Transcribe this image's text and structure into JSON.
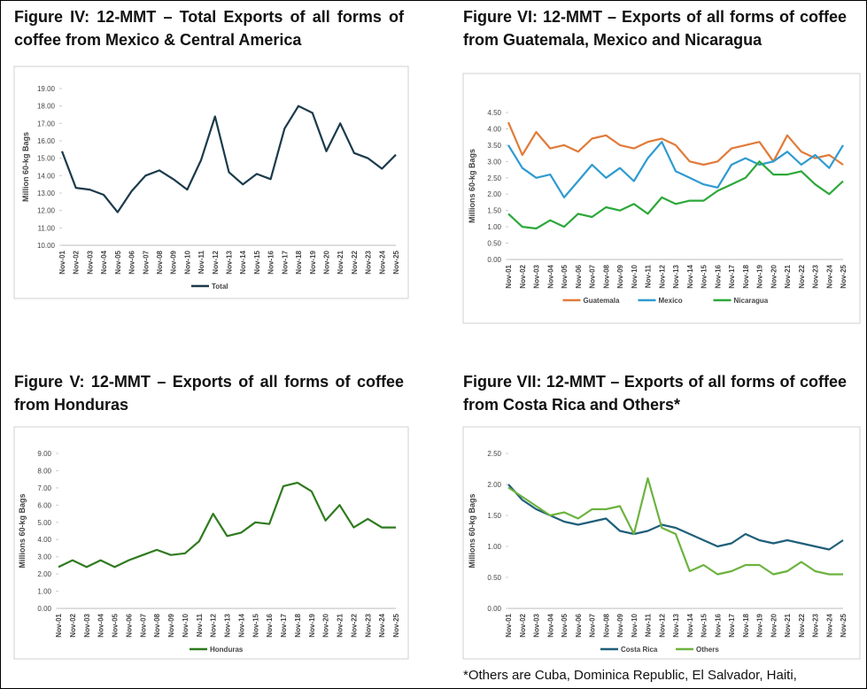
{
  "chart_data": [
    {
      "type": "line",
      "title": "Figure IV: 12-MMT – Total Exports of all forms of coffee from Mexico & Central America",
      "y_label": "Million 60-kg Bags",
      "categories": [
        "Nov-01",
        "Nov-02",
        "Nov-03",
        "Nov-04",
        "Nov-05",
        "Nov-06",
        "Nov-07",
        "Nov-08",
        "Nov-09",
        "Nov-10",
        "Nov-11",
        "Nov-12",
        "Nov-13",
        "Nov-14",
        "Nov-15",
        "Nov-16",
        "Nov-17",
        "Nov-18",
        "Nov-19",
        "Nov-20",
        "Nov-21",
        "Nov-22",
        "Nov-23",
        "Nov-24",
        "Nov-25"
      ],
      "series": [
        {
          "name": "Total",
          "color": "#1b3a4b",
          "values": [
            15.4,
            13.3,
            13.2,
            12.9,
            11.9,
            13.1,
            14.0,
            14.3,
            13.8,
            13.2,
            14.9,
            17.4,
            14.2,
            13.5,
            14.1,
            13.8,
            16.7,
            18.0,
            17.6,
            15.4,
            17.0,
            15.3,
            15.0,
            14.4,
            15.2
          ]
        }
      ],
      "ylim": [
        10,
        19
      ],
      "yticks": [
        {
          "value": 10,
          "label": "10.00"
        },
        {
          "value": 11,
          "label": "11.00"
        },
        {
          "value": 12,
          "label": "12.00"
        },
        {
          "value": 13,
          "label": "13.00"
        },
        {
          "value": 14,
          "label": "14.00"
        },
        {
          "value": 15,
          "label": "15.00"
        },
        {
          "value": 16,
          "label": "16.00"
        },
        {
          "value": 17,
          "label": "17.00"
        },
        {
          "value": 18,
          "label": "18.00"
        },
        {
          "value": 19,
          "label": "19.00"
        }
      ],
      "legend": "bottom"
    },
    {
      "type": "line",
      "title": "Figure VI: 12-MMT – Exports of all forms of coffee from Guatemala, Mexico and Nicaragua",
      "y_label": "Millions 60-kg Bags",
      "categories": [
        "Nov-01",
        "Nov-02",
        "Nov-03",
        "Nov-04",
        "Nov-05",
        "Nov-06",
        "Nov-07",
        "Nov-08",
        "Nov-09",
        "Nov-10",
        "Nov-11",
        "Nov-12",
        "Nov-13",
        "Nov-14",
        "Nov-15",
        "Nov-16",
        "Nov-17",
        "Nov-18",
        "Nov-19",
        "Nov-20",
        "Nov-21",
        "Nov-22",
        "Nov-23",
        "Nov-24",
        "Nov-25"
      ],
      "series": [
        {
          "name": "Guatemala",
          "color": "#e07b39",
          "values": [
            4.2,
            3.2,
            3.9,
            3.4,
            3.5,
            3.3,
            3.7,
            3.8,
            3.5,
            3.4,
            3.6,
            3.7,
            3.5,
            3.0,
            2.9,
            3.0,
            3.4,
            3.5,
            3.6,
            3.0,
            3.8,
            3.3,
            3.1,
            3.2,
            2.9
          ]
        },
        {
          "name": "Mexico",
          "color": "#2e9bd0",
          "values": [
            3.5,
            2.8,
            2.5,
            2.6,
            1.9,
            2.4,
            2.9,
            2.5,
            2.8,
            2.4,
            3.1,
            3.6,
            2.7,
            2.5,
            2.3,
            2.2,
            2.9,
            3.1,
            2.9,
            3.0,
            3.3,
            2.9,
            3.2,
            2.8,
            3.5
          ]
        },
        {
          "name": "Nicaragua",
          "color": "#2ca83a",
          "values": [
            1.4,
            1.0,
            0.95,
            1.2,
            1.0,
            1.4,
            1.3,
            1.6,
            1.5,
            1.7,
            1.4,
            1.9,
            1.7,
            1.8,
            1.8,
            2.1,
            2.3,
            2.5,
            3.0,
            2.6,
            2.6,
            2.7,
            2.3,
            2.0,
            2.4
          ]
        }
      ],
      "ylim": [
        0,
        4.5
      ],
      "yticks": [
        {
          "value": 0,
          "label": "0.00"
        },
        {
          "value": 0.5,
          "label": "0.50"
        },
        {
          "value": 1,
          "label": "1.00"
        },
        {
          "value": 1.5,
          "label": "1.50"
        },
        {
          "value": 2,
          "label": "2.00"
        },
        {
          "value": 2.5,
          "label": "2.50"
        },
        {
          "value": 3,
          "label": "3.00"
        },
        {
          "value": 3.5,
          "label": "3.50"
        },
        {
          "value": 4,
          "label": "4.00"
        },
        {
          "value": 4.5,
          "label": "4.50"
        }
      ],
      "legend": "bottom"
    },
    {
      "type": "line",
      "title": "Figure V: 12-MMT – Exports of all forms of coffee from Honduras",
      "y_label": "Millions 60-kg Bags",
      "categories": [
        "Nov-01",
        "Nov-02",
        "Nov-03",
        "Nov-04",
        "Nov-05",
        "Nov-06",
        "Nov-07",
        "Nov-08",
        "Nov-09",
        "Nov-10",
        "Nov-11",
        "Nov-12",
        "Nov-13",
        "Nov-14",
        "Nov-15",
        "Nov-16",
        "Nov-17",
        "Nov-18",
        "Nov-19",
        "Nov-20",
        "Nov-21",
        "Nov-22",
        "Nov-23",
        "Nov-24",
        "Nov-25"
      ],
      "series": [
        {
          "name": "Honduras",
          "color": "#2e7a1e",
          "values": [
            2.4,
            2.8,
            2.4,
            2.8,
            2.4,
            2.8,
            3.1,
            3.4,
            3.1,
            3.2,
            3.9,
            5.5,
            4.2,
            4.4,
            5.0,
            4.9,
            7.1,
            7.3,
            6.8,
            5.1,
            6.0,
            4.7,
            5.2,
            4.7,
            4.7
          ]
        }
      ],
      "ylim": [
        0,
        9
      ],
      "yticks": [
        {
          "value": 0,
          "label": "0.00"
        },
        {
          "value": 1,
          "label": "1.00"
        },
        {
          "value": 2,
          "label": "2.00"
        },
        {
          "value": 3,
          "label": "3.00"
        },
        {
          "value": 4,
          "label": "4.00"
        },
        {
          "value": 5,
          "label": "5.00"
        },
        {
          "value": 6,
          "label": "6.00"
        },
        {
          "value": 7,
          "label": "7.00"
        },
        {
          "value": 8,
          "label": "8.00"
        },
        {
          "value": 9,
          "label": "9.00"
        }
      ],
      "legend": "bottom"
    },
    {
      "type": "line",
      "title": "Figure VII: 12-MMT – Exports of all forms of coffee from Costa Rica and Others*",
      "y_label": "Millions 60-kg Bags",
      "categories": [
        "Nov-01",
        "Nov-02",
        "Nov-03",
        "Nov-04",
        "Nov-05",
        "Nov-06",
        "Nov-07",
        "Nov-08",
        "Nov-09",
        "Nov-10",
        "Nov-11",
        "Nov-12",
        "Nov-13",
        "Nov-14",
        "Nov-15",
        "Nov-16",
        "Nov-17",
        "Nov-18",
        "Nov-19",
        "Nov-20",
        "Nov-21",
        "Nov-22",
        "Nov-23",
        "Nov-24",
        "Nov-25"
      ],
      "series": [
        {
          "name": "Costa Rica",
          "color": "#1f5f7a",
          "values": [
            2.0,
            1.75,
            1.6,
            1.5,
            1.4,
            1.35,
            1.4,
            1.45,
            1.25,
            1.2,
            1.25,
            1.35,
            1.3,
            1.2,
            1.1,
            1.0,
            1.05,
            1.2,
            1.1,
            1.05,
            1.1,
            1.05,
            1.0,
            0.95,
            1.1
          ]
        },
        {
          "name": "Others",
          "color": "#6cb33f",
          "values": [
            1.95,
            1.8,
            1.65,
            1.5,
            1.55,
            1.45,
            1.6,
            1.6,
            1.65,
            1.2,
            2.1,
            1.3,
            1.2,
            0.6,
            0.7,
            0.55,
            0.6,
            0.7,
            0.7,
            0.55,
            0.6,
            0.75,
            0.6,
            0.55,
            0.55
          ]
        }
      ],
      "ylim": [
        0,
        2.5
      ],
      "yticks": [
        {
          "value": 0,
          "label": "0.00"
        },
        {
          "value": 0.5,
          "label": "0.50"
        },
        {
          "value": 1,
          "label": "1.00"
        },
        {
          "value": 1.5,
          "label": "1.50"
        },
        {
          "value": 2,
          "label": "2.00"
        },
        {
          "value": 2.5,
          "label": "2.50"
        }
      ],
      "legend": "bottom"
    }
  ],
  "footnote": "*Others are Cuba, Dominica Republic, El Salvador, Haiti,"
}
